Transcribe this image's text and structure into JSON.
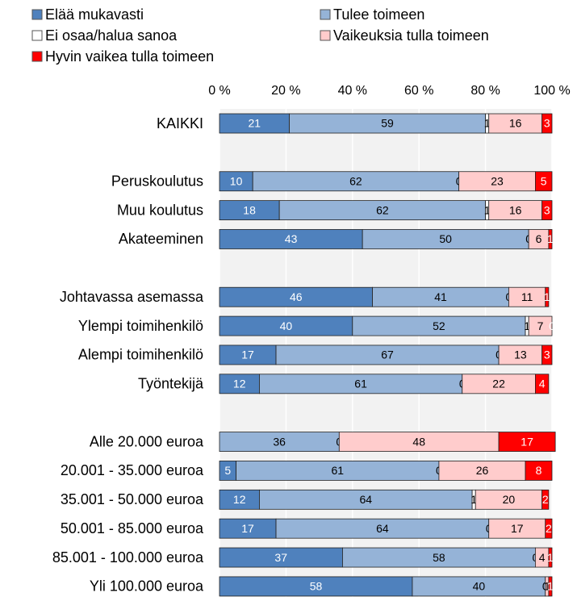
{
  "chart_data": {
    "type": "stacked_barh",
    "categories": [
      "KAIKKI",
      null,
      "Peruskoulutus",
      "Muu koulutus",
      "Akateeminen",
      null,
      "Johtavassa asemassa",
      "Ylempi toimihenkilö",
      "Alempi toimihenkilö",
      "Työntekijä",
      null,
      "Alle 20.000 euroa",
      "20.001 - 35.000 euroa",
      "35.001 - 50.000 euroa",
      "50.001 - 85.000 euroa",
      "85.001 - 100.000 euroa",
      "Yli 100.000 euroa"
    ],
    "series": [
      {
        "name": "Elää mukavasti",
        "color": "#4f81bd",
        "label_color": "#ffffff",
        "values": [
          21,
          null,
          10,
          18,
          43,
          null,
          46,
          40,
          17,
          12,
          null,
          0,
          5,
          12,
          17,
          37,
          58
        ]
      },
      {
        "name": "Tulee toimeen",
        "color": "#95b3d7",
        "label_color": "#000000",
        "values": [
          59,
          null,
          62,
          62,
          50,
          null,
          41,
          52,
          67,
          61,
          null,
          36,
          61,
          64,
          64,
          58,
          40
        ]
      },
      {
        "name": "Ei osaa/halua sanoa",
        "color": "#ffffff",
        "label_color": "#000000",
        "values": [
          1,
          null,
          0,
          1,
          0,
          null,
          0,
          1,
          0,
          0,
          null,
          0,
          0,
          1,
          0,
          0,
          0
        ]
      },
      {
        "name": "Vaikeuksia tulla toimeen",
        "color": "#ffcccc",
        "label_color": "#000000",
        "values": [
          16,
          null,
          23,
          16,
          6,
          null,
          11,
          7,
          13,
          22,
          null,
          48,
          26,
          20,
          17,
          4,
          1
        ]
      },
      {
        "name": "Hyvin vaikea tulla toimeen",
        "color": "#ff0000",
        "label_color": "#ffffff",
        "values": [
          3,
          null,
          5,
          3,
          1,
          null,
          1,
          0,
          3,
          4,
          null,
          17,
          8,
          2,
          2,
          1,
          1
        ]
      }
    ],
    "xlim": [
      0,
      100
    ],
    "xticks": [
      {
        "value": 0,
        "label": "0 %"
      },
      {
        "value": 20,
        "label": "20 %"
      },
      {
        "value": 40,
        "label": "40 %"
      },
      {
        "value": 60,
        "label": "60 %"
      },
      {
        "value": 80,
        "label": "80 %"
      },
      {
        "value": 100,
        "label": "100 %"
      }
    ],
    "grid": true
  }
}
